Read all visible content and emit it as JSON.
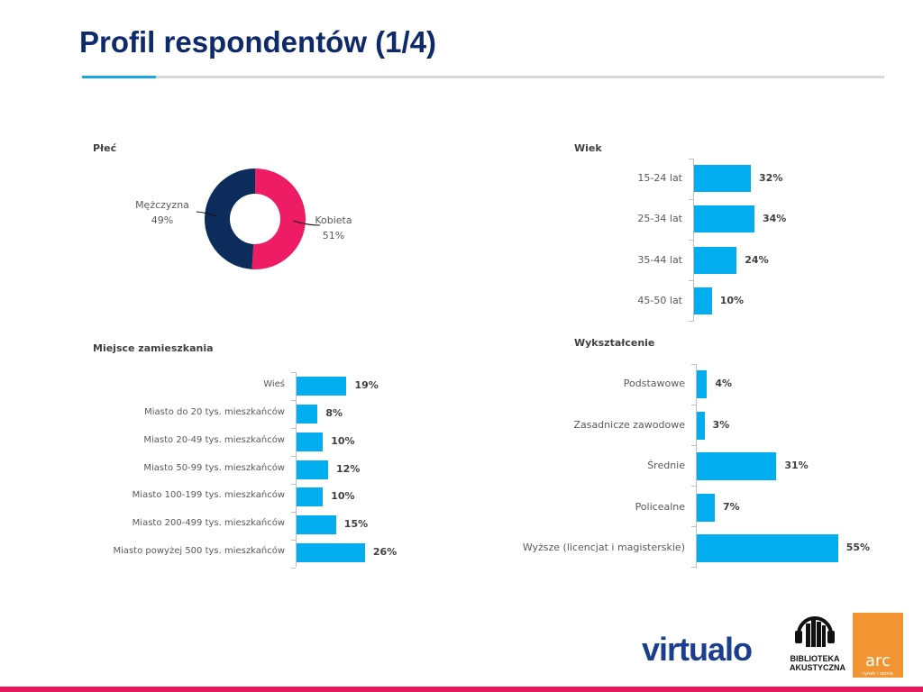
{
  "title": "Profil respondentów (1/4)",
  "colors": {
    "title": "#0f2a6b",
    "accent": "#1aa6e0",
    "bar": "#00aeef",
    "female": "#ee1c64",
    "male": "#0c2c5c",
    "bottom": "#e6195f"
  },
  "logos": {
    "virtualo": "virtualo",
    "biblioteka": [
      "BIBLIOTEKA",
      "AKUSTYCZNA"
    ],
    "arc": "arc",
    "arc_sub": "rynek i opinie"
  },
  "chart_data": [
    {
      "type": "pie",
      "title": "Płeć",
      "donut": true,
      "slices": [
        {
          "name": "Kobieta",
          "value": 51,
          "label": "51%",
          "color": "#ee1c64"
        },
        {
          "name": "Mężczyzna",
          "value": 49,
          "label": "49%",
          "color": "#0c2c5c"
        }
      ]
    },
    {
      "type": "bar",
      "orientation": "horizontal",
      "title": "Wiek",
      "categories": [
        "15-24 lat",
        "25-34 lat",
        "35-44 lat",
        "45-50 lat"
      ],
      "values": [
        32,
        34,
        24,
        10
      ],
      "labels": [
        "32%",
        "34%",
        "24%",
        "10%"
      ]
    },
    {
      "type": "bar",
      "orientation": "horizontal",
      "title": "Miejsce zamieszkania",
      "categories": [
        "Wieś",
        "Miasto do 20 tys. mieszkańców",
        "Miasto 20-49 tys. mieszkańców",
        "Miasto 50-99 tys. mieszkańców",
        "Miasto 100-199 tys. mieszkańców",
        "Miasto 200-499 tys. mieszkańców",
        "Miasto powyżej 500 tys. mieszkańców"
      ],
      "values": [
        19,
        8,
        10,
        12,
        10,
        15,
        26
      ],
      "labels": [
        "19%",
        "8%",
        "10%",
        "12%",
        "10%",
        "15%",
        "26%"
      ]
    },
    {
      "type": "bar",
      "orientation": "horizontal",
      "title": "Wykształcenie",
      "categories": [
        "Podstawowe",
        "Zasadnicze zawodowe",
        "Średnie",
        "Policealne",
        "Wyższe (licencjat i magisterskie)"
      ],
      "values": [
        4,
        3,
        31,
        7,
        55
      ],
      "labels": [
        "4%",
        "3%",
        "31%",
        "7%",
        "55%"
      ]
    }
  ]
}
